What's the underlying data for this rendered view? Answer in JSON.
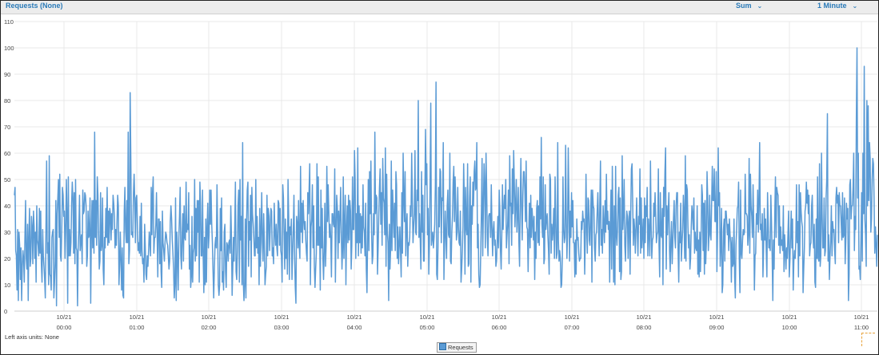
{
  "header": {
    "title": "Requests (None)",
    "statistic": "Sum",
    "period": "1 Minute"
  },
  "footer": {
    "axis_units": "Left axis units:  None",
    "legend_label": "Requests"
  },
  "colors": {
    "line": "#5b9bd5",
    "accent": "#2a7ab8",
    "grid": "#e9e9e9"
  },
  "chart_data": {
    "type": "line",
    "title": "Requests (None)",
    "xlabel": "",
    "ylabel": "",
    "ylim": [
      0,
      110
    ],
    "yticks": [
      "0",
      "10",
      "20",
      "30",
      "40",
      "50",
      "60",
      "70",
      "80",
      "90",
      "100",
      "110"
    ],
    "xticks": [
      {
        "date": "10/21",
        "time": "00:00"
      },
      {
        "date": "10/21",
        "time": "01:00"
      },
      {
        "date": "10/21",
        "time": "02:00"
      },
      {
        "date": "10/21",
        "time": "03:00"
      },
      {
        "date": "10/21",
        "time": "04:00"
      },
      {
        "date": "10/21",
        "time": "05:00"
      },
      {
        "date": "10/21",
        "time": "06:00"
      },
      {
        "date": "10/21",
        "time": "07:00"
      },
      {
        "date": "10/21",
        "time": "08:00"
      },
      {
        "date": "10/21",
        "time": "09:00"
      },
      {
        "date": "10/21",
        "time": "10:00"
      },
      {
        "date": "10/21",
        "time": "11:00"
      }
    ],
    "x_start": "10/21 23:38",
    "x_end": "10/21 11:13",
    "grid": true,
    "legend": "bottom-center",
    "series": [
      {
        "name": "Requests",
        "values": [
          44,
          47,
          23,
          21,
          8,
          31,
          4,
          30,
          25,
          12,
          24,
          4,
          17,
          23,
          20,
          11,
          28,
          42,
          20,
          16,
          33,
          4,
          28,
          39,
          17,
          20,
          36,
          32,
          18,
          38,
          32,
          20,
          30,
          11,
          40,
          27,
          25,
          21,
          39,
          22,
          38,
          18,
          11,
          31,
          21,
          17,
          12,
          5,
          32,
          57,
          22,
          26,
          10,
          59,
          14,
          13,
          8,
          28,
          30,
          31,
          5,
          11,
          19,
          42,
          2,
          37,
          43,
          50,
          28,
          52,
          21,
          19,
          31,
          47,
          44,
          36,
          38,
          20,
          30,
          50,
          37,
          3,
          51,
          21,
          31,
          21,
          26,
          41,
          49,
          43,
          22,
          45,
          18,
          50,
          24,
          23,
          2,
          24,
          31,
          44,
          23,
          27,
          29,
          18,
          46,
          37,
          38,
          45,
          44,
          40,
          17,
          21,
          38,
          28,
          29,
          43,
          3,
          29,
          42,
          24,
          42,
          22,
          68,
          28,
          42,
          25,
          51,
          44,
          29,
          16,
          19,
          45,
          23,
          25,
          43,
          16,
          10,
          28,
          24,
          39,
          28,
          47,
          25,
          38,
          26,
          39,
          37,
          27,
          37,
          31,
          44,
          41,
          36,
          24,
          31,
          25,
          34,
          44,
          40,
          10,
          18,
          30,
          19,
          8,
          24,
          6,
          5,
          38,
          47,
          31,
          26,
          42,
          26,
          68,
          18,
          23,
          83,
          58,
          29,
          30,
          28,
          45,
          52,
          42,
          26,
          43,
          44,
          33,
          23,
          26,
          22,
          36,
          21,
          41,
          23,
          18,
          20,
          11,
          33,
          24,
          14,
          12,
          21,
          17,
          23,
          30,
          26,
          21,
          47,
          29,
          45,
          51,
          22,
          28,
          28,
          33,
          45,
          29,
          13,
          35,
          35,
          18,
          34,
          15,
          9,
          38,
          26,
          23,
          19,
          26,
          30,
          29,
          26,
          25,
          21,
          16,
          19,
          34,
          40,
          35,
          27,
          22,
          16,
          5,
          10,
          43,
          4,
          30,
          21,
          8,
          28,
          36,
          47,
          21,
          16,
          29,
          37,
          19,
          40,
          28,
          27,
          49,
          30,
          33,
          31,
          45,
          16,
          25,
          9,
          13,
          36,
          11,
          22,
          24,
          50,
          19,
          39,
          21,
          42,
          30,
          42,
          11,
          49,
          41,
          21,
          21,
          46,
          21,
          7,
          28,
          10,
          35,
          11,
          32,
          41,
          24,
          29,
          46,
          33,
          46,
          33,
          26,
          15,
          5,
          16,
          25,
          28,
          24,
          48,
          30,
          10,
          6,
          10,
          39,
          23,
          43,
          11,
          15,
          8,
          30,
          33,
          15,
          9,
          26,
          25,
          19,
          26,
          27,
          22,
          40,
          28,
          6,
          16,
          28,
          19,
          32,
          49,
          15,
          12,
          23,
          40,
          46,
          11,
          50,
          27,
          36,
          10,
          64,
          11,
          4,
          10,
          35,
          5,
          34,
          46,
          49,
          17,
          34,
          27,
          44,
          13,
          47,
          37,
          33,
          28,
          21,
          21,
          50,
          24,
          36,
          22,
          28,
          10,
          39,
          17,
          30,
          45,
          26,
          19,
          37,
          26,
          10,
          14,
          17,
          44,
          21,
          39,
          36,
          23,
          32,
          39,
          38,
          21,
          24,
          18,
          41,
          30,
          25,
          33,
          24,
          21,
          42,
          41,
          25,
          39,
          23,
          21,
          11,
          48,
          43,
          29,
          16,
          35,
          20,
          30,
          14,
          50,
          36,
          12,
          32,
          29,
          35,
          12,
          22,
          31,
          44,
          21,
          9,
          3,
          36,
          33,
          24,
          42,
          25,
          20,
          55,
          30,
          41,
          26,
          42,
          35,
          31,
          34,
          27,
          22,
          19,
          45,
          37,
          46,
          56,
          10,
          32,
          35,
          48,
          24,
          40,
          17,
          9,
          16,
          22,
          56,
          25,
          51,
          25,
          32,
          8,
          46,
          24,
          39,
          20,
          12,
          23,
          41,
          17,
          26,
          55,
          34,
          48,
          38,
          28,
          33,
          27,
          13,
          37,
          37,
          33,
          32,
          54,
          11,
          31,
          44,
          39,
          20,
          38,
          26,
          36,
          47,
          29,
          16,
          24,
          51,
          20,
          33,
          44,
          10,
          31,
          40,
          26,
          44,
          27,
          42,
          38,
          16,
          25,
          51,
          31,
          31,
          61,
          50,
          20,
          37,
          26,
          62,
          21,
          40,
          26,
          37,
          22,
          36,
          24,
          48,
          32,
          30,
          21,
          41,
          16,
          7,
          27,
          50,
          23,
          53,
          37,
          57,
          31,
          18,
          21,
          37,
          29,
          68,
          37,
          44,
          43,
          14,
          24,
          37,
          47,
          54,
          33,
          45,
          25,
          58,
          43,
          41,
          29,
          62,
          17,
          52,
          30,
          26,
          4,
          33,
          16,
          24,
          57,
          23,
          46,
          37,
          28,
          41,
          23,
          53,
          48,
          20,
          32,
          18,
          25,
          32,
          23,
          13,
          45,
          22,
          60,
          43,
          34,
          53,
          21,
          33,
          37,
          17,
          26,
          25,
          28,
          40,
          36,
          60,
          42,
          26,
          32,
          37,
          61,
          30,
          29,
          46,
          42,
          80,
          28,
          37,
          27,
          16,
          53,
          30,
          44,
          19,
          19,
          43,
          69,
          48,
          56,
          29,
          39,
          14,
          26,
          50,
          79,
          25,
          28,
          30,
          24,
          28,
          33,
          48,
          87,
          14,
          12,
          24,
          47,
          32,
          54,
          53,
          26,
          43,
          42,
          64,
          12,
          26,
          38,
          28,
          20,
          40,
          46,
          29,
          28,
          60,
          19,
          18,
          30,
          36,
          49,
          55,
          34,
          51,
          41,
          27,
          30,
          47,
          32,
          26,
          25,
          38,
          11,
          16,
          23,
          32,
          56,
          42,
          14,
          47,
          32,
          29,
          56,
          17,
          18,
          43,
          51,
          11,
          40,
          33,
          49,
          40,
          53,
          57,
          46,
          47,
          64,
          24,
          33,
          14,
          9,
          10,
          23,
          38,
          58,
          21,
          39,
          56,
          48,
          24,
          60,
          46,
          28,
          21,
          36,
          37,
          37,
          28,
          48,
          32,
          21,
          31,
          34,
          25,
          27,
          17,
          19,
          27,
          36,
          24,
          46,
          39,
          23,
          16,
          29,
          48,
          31,
          38,
          44,
          39,
          50,
          24,
          29,
          34,
          46,
          18,
          59,
          40,
          41,
          25,
          54,
          37,
          61,
          49,
          32,
          41,
          50,
          30,
          37,
          47,
          26,
          17,
          42,
          58,
          39,
          27,
          44,
          53,
          53,
          46,
          34,
          57,
          32,
          31,
          15,
          30,
          41,
          24,
          44,
          28,
          39,
          34,
          27,
          36,
          12,
          30,
          20,
          39,
          42,
          26,
          40,
          25,
          51,
          35,
          66,
          33,
          28,
          51,
          18,
          20,
          48,
          31,
          35,
          37,
          29,
          23,
          14,
          52,
          50,
          22,
          33,
          27,
          31,
          39,
          20,
          51,
          36,
          20,
          22,
          64,
          27,
          19,
          23,
          20,
          9,
          10,
          20,
          51,
          31,
          26,
          28,
          63,
          36,
          20,
          30,
          62,
          42,
          19,
          38,
          28,
          45,
          32,
          42,
          26,
          26,
          13,
          27,
          14,
          35,
          27,
          28,
          22,
          19,
          20,
          20,
          34,
          31,
          38,
          34,
          35,
          14,
          28,
          52,
          32,
          22,
          43,
          42,
          27,
          25,
          37,
          46,
          11,
          46,
          40,
          39,
          24,
          19,
          29,
          30,
          38,
          45,
          32,
          21,
          41,
          57,
          25,
          31,
          22,
          40,
          33,
          26,
          42,
          30,
          52,
          33,
          38,
          31,
          34,
          11,
          34,
          46,
          16,
          55,
          33,
          11,
          40,
          10,
          55,
          29,
          25,
          32,
          44,
          47,
          15,
          43,
          12,
          15,
          59,
          31,
          37,
          50,
          25,
          19,
          31,
          38,
          36,
          20,
          34,
          38,
          14,
          37,
          54,
          56,
          41,
          25,
          35,
          31,
          22,
          32,
          43,
          30,
          21,
          36,
          33,
          54,
          22,
          43,
          24,
          29,
          35,
          20,
          43,
          26,
          40,
          36,
          47,
          21,
          35,
          30,
          21,
          57,
          33,
          20,
          27,
          28,
          41,
          36,
          45,
          36,
          26,
          29,
          30,
          54,
          25,
          13,
          45,
          29,
          28,
          39,
          10,
          47,
          36,
          53,
          62,
          16,
          40,
          29,
          38,
          45,
          23,
          15,
          27,
          34,
          18,
          26,
          35,
          42,
          28,
          24,
          40,
          45,
          45,
          23,
          11,
          30,
          26,
          41,
          19,
          26,
          31,
          44,
          37,
          20,
          59,
          19,
          48,
          46,
          32,
          24,
          29,
          16,
          20,
          32,
          40,
          37,
          31,
          43,
          22,
          30,
          24,
          23,
          40,
          14,
          27,
          13,
          30,
          15,
          28,
          48,
          44,
          23,
          41,
          14,
          42,
          18,
          26,
          53,
          43,
          23,
          29,
          44,
          29,
          27,
          41,
          55,
          42,
          42,
          54,
          34,
          34,
          53,
          15,
          30,
          62,
          40,
          45,
          17,
          25,
          39,
          7,
          10,
          31,
          35,
          19,
          38,
          38,
          34,
          29,
          33,
          23,
          35,
          29,
          26,
          11,
          28,
          17,
          18,
          35,
          13,
          5,
          25,
          31,
          39,
          40,
          49,
          20,
          7,
          46,
          22,
          20,
          27,
          31,
          29,
          30,
          52,
          37,
          37,
          36,
          25,
          29,
          58,
          22,
          52,
          40,
          36,
          28,
          48,
          33,
          8,
          21,
          22,
          37,
          33,
          46,
          30,
          42,
          64,
          31,
          33,
          27,
          37,
          13,
          24,
          39,
          27,
          35,
          23,
          13,
          45,
          34,
          24,
          27,
          23,
          44,
          34,
          21,
          4,
          27,
          16,
          37,
          51,
          28,
          47,
          45,
          44,
          25,
          40,
          22,
          32,
          25,
          27,
          23,
          40,
          15,
          29,
          23,
          16,
          24,
          20,
          29,
          38,
          13,
          19,
          29,
          38,
          24,
          35,
          8,
          19,
          23,
          20,
          27,
          48,
          26,
          34,
          13,
          48,
          21,
          45,
          38,
          34,
          32,
          7,
          16,
          24,
          38,
          40,
          49,
          41,
          46,
          37,
          44,
          21,
          25,
          26,
          40,
          44,
          29,
          24,
          33,
          11,
          9,
          35,
          20,
          51,
          20,
          19,
          56,
          17,
          21,
          60,
          37,
          24,
          24,
          43,
          21,
          23,
          43,
          50,
          75,
          19,
          29,
          12,
          21,
          27,
          40,
          21,
          34,
          30,
          31,
          23,
          18,
          43,
          47,
          41,
          44,
          26,
          45,
          40,
          40,
          33,
          27,
          45,
          28,
          29,
          43,
          18,
          27,
          41,
          35,
          39,
          4,
          14,
          48,
          50,
          35,
          40,
          40,
          47,
          60,
          23,
          36,
          31,
          73,
          100,
          43,
          60,
          16,
          17,
          12,
          27,
          45,
          19,
          60,
          37,
          93,
          35,
          29,
          17,
          80,
          40,
          78,
          42,
          64,
          58,
          30,
          35,
          50,
          58,
          56,
          42,
          22,
          32,
          25,
          17,
          29
        ]
      }
    ]
  }
}
